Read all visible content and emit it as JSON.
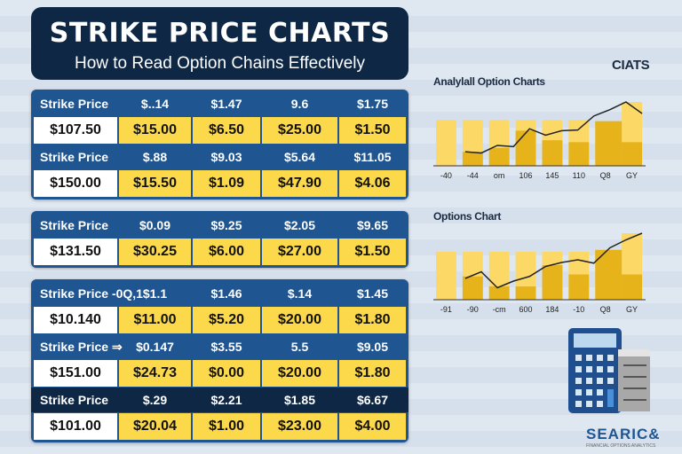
{
  "header": {
    "title": "STRIKE PRICE CHARTS",
    "subtitle": "How to Read Option Chains Effectively"
  },
  "groups": [
    {
      "rows": [
        {
          "header": [
            "Strike Price",
            "$..14",
            "$1.47",
            "9.6",
            "$1.75"
          ],
          "values": [
            "$107.50",
            "$15.00",
            "$6.50",
            "$25.00",
            "$1.50"
          ]
        },
        {
          "header": [
            "Strike Price",
            "$.88",
            "$9.03",
            "$5.64",
            "$11.05"
          ],
          "values": [
            "$150.00",
            "$15.50",
            "$1.09",
            "$47.90",
            "$4.06"
          ]
        }
      ]
    },
    {
      "rows": [
        {
          "header": [
            "Strike Price",
            "$0.09",
            "$9.25",
            "$2.05",
            "$9.65"
          ],
          "values": [
            "$131.50",
            "$30.25",
            "$6.00",
            "$27.00",
            "$1.50"
          ]
        }
      ]
    },
    {
      "rows": [
        {
          "header": [
            "Strike Price -0Q,1",
            "$1.1",
            "$1.46",
            "$.14",
            "$1.45"
          ],
          "values": [
            "$10.140",
            "$11.00",
            "$5.20",
            "$20.00",
            "$1.80"
          ]
        },
        {
          "header": [
            "Strike Price ⇒",
            "$0.147",
            "$3.55",
            "5.5",
            "$9.05"
          ],
          "values": [
            "$151.00",
            "$24.73",
            "$0.00",
            "$20.00",
            "$1.80"
          ]
        },
        {
          "header": [
            "Strike Price",
            "$.29",
            "$2.21",
            "$1.85",
            "$6.67"
          ],
          "values": [
            "$101.00",
            "$20.04",
            "$1.00",
            "$23.00",
            "$4.00"
          ]
        }
      ]
    }
  ],
  "chart_data": [
    {
      "type": "bar",
      "title": "Analylall Option Charts",
      "corner_label": "CIATS",
      "categories": [
        "-40",
        "-44",
        "om",
        "106",
        "145",
        "110",
        "Q8",
        "GY"
      ],
      "bar_light": [
        72,
        72,
        72,
        72,
        72,
        72,
        0,
        100
      ],
      "bar_dark": [
        0,
        22,
        28,
        55,
        40,
        37,
        70,
        37
      ],
      "line": [
        22,
        20,
        32,
        30,
        58,
        48,
        55,
        56,
        78,
        88,
        100,
        82
      ],
      "colors": {
        "light": "#fcd966",
        "dark": "#e6b31a",
        "line": "#222222"
      }
    },
    {
      "type": "bar",
      "title": "Options Chart",
      "categories": [
        "-91",
        "-90",
        "-cm",
        "600",
        "184",
        "-10",
        "Q8",
        "GY"
      ],
      "bar_light": [
        72,
        72,
        72,
        72,
        72,
        72,
        0,
        100
      ],
      "bar_dark": [
        0,
        35,
        20,
        20,
        52,
        38,
        75,
        38
      ],
      "line": [
        32,
        42,
        18,
        28,
        35,
        50,
        56,
        60,
        55,
        78,
        90,
        100
      ],
      "colors": {
        "light": "#fcd966",
        "dark": "#e6b31a",
        "line": "#222222"
      }
    }
  ],
  "logo": {
    "text": "SEARIC&",
    "tagline": "FINANCIAL OPTIONS ANALYTICS"
  }
}
